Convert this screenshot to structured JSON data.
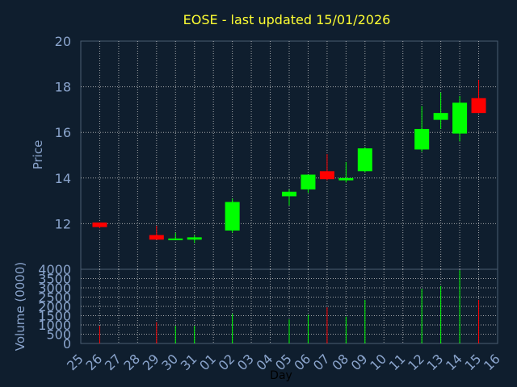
{
  "chart_data": [
    {
      "type": "candlestick",
      "title": "EOSE - last updated 15/01/2026",
      "ylabel": "Price",
      "ylim": [
        10,
        20
      ],
      "yticks": [
        12,
        14,
        16,
        18,
        20
      ],
      "grid": true,
      "up_color": "#00ff00",
      "down_color": "#ff0000",
      "categories": [
        "25",
        "26",
        "27",
        "28",
        "29",
        "30",
        "31",
        "01",
        "02",
        "03",
        "04",
        "05",
        "06",
        "07",
        "08",
        "09",
        "10",
        "11",
        "12",
        "13",
        "14",
        "15",
        "16"
      ],
      "candles": [
        {
          "day": "26",
          "open": 12.05,
          "high": 12.05,
          "low": 11.8,
          "close": 11.85
        },
        {
          "day": "29",
          "open": 11.5,
          "high": 11.9,
          "low": 11.3,
          "close": 11.3
        },
        {
          "day": "30",
          "open": 11.3,
          "high": 11.6,
          "low": 11.3,
          "close": 11.35
        },
        {
          "day": "31",
          "open": 11.3,
          "high": 11.5,
          "low": 11.15,
          "close": 11.4
        },
        {
          "day": "02",
          "open": 11.7,
          "high": 13.1,
          "low": 11.6,
          "close": 12.95
        },
        {
          "day": "05",
          "open": 13.2,
          "high": 13.5,
          "low": 12.8,
          "close": 13.4
        },
        {
          "day": "06",
          "open": 13.5,
          "high": 14.15,
          "low": 13.35,
          "close": 14.15
        },
        {
          "day": "07",
          "open": 14.3,
          "high": 15.05,
          "low": 13.9,
          "close": 13.95
        },
        {
          "day": "08",
          "open": 13.9,
          "high": 14.7,
          "low": 13.8,
          "close": 14.0
        },
        {
          "day": "09",
          "open": 14.3,
          "high": 15.35,
          "low": 14.25,
          "close": 15.3
        },
        {
          "day": "12",
          "open": 15.25,
          "high": 17.15,
          "low": 15.15,
          "close": 16.15
        },
        {
          "day": "13",
          "open": 16.55,
          "high": 17.75,
          "low": 16.15,
          "close": 16.85
        },
        {
          "day": "14",
          "open": 15.95,
          "high": 17.6,
          "low": 15.6,
          "close": 17.3
        },
        {
          "day": "15",
          "open": 17.5,
          "high": 18.3,
          "low": 16.85,
          "close": 16.85
        }
      ]
    },
    {
      "type": "bar",
      "ylabel": "Volume (0000)",
      "xlabel": "Day",
      "ylim": [
        0,
        4000
      ],
      "yticks": [
        0,
        500,
        1000,
        1500,
        2000,
        2500,
        3000,
        3500,
        4000
      ],
      "grid": true,
      "volumes": [
        {
          "day": "26",
          "value": 950,
          "color": "#ff0000"
        },
        {
          "day": "29",
          "value": 1150,
          "color": "#ff0000"
        },
        {
          "day": "30",
          "value": 950,
          "color": "#00ff00"
        },
        {
          "day": "31",
          "value": 950,
          "color": "#00ff00"
        },
        {
          "day": "02",
          "value": 1600,
          "color": "#00ff00"
        },
        {
          "day": "05",
          "value": 1300,
          "color": "#00ff00"
        },
        {
          "day": "06",
          "value": 1550,
          "color": "#00ff00"
        },
        {
          "day": "07",
          "value": 1950,
          "color": "#ff0000"
        },
        {
          "day": "08",
          "value": 1450,
          "color": "#00ff00"
        },
        {
          "day": "09",
          "value": 2350,
          "color": "#00ff00"
        },
        {
          "day": "12",
          "value": 2950,
          "color": "#00ff00"
        },
        {
          "day": "13",
          "value": 3100,
          "color": "#00ff00"
        },
        {
          "day": "14",
          "value": 3950,
          "color": "#00ff00"
        },
        {
          "day": "15",
          "value": 2350,
          "color": "#ff0000"
        }
      ]
    }
  ]
}
